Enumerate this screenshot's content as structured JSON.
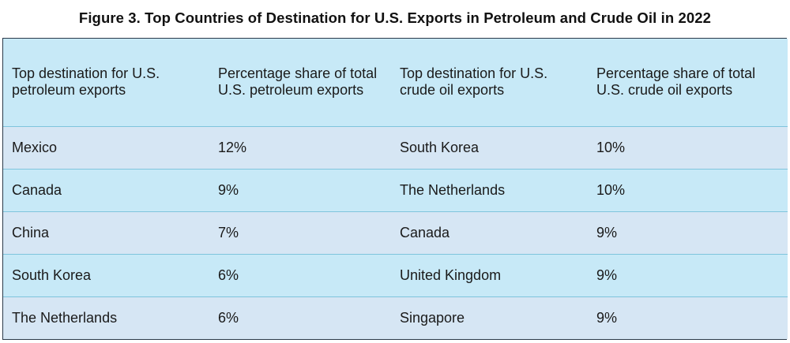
{
  "title": "Figure 3. Top Countries of Destination for U.S. Exports in Petroleum and Crude Oil in 2022",
  "table": {
    "headers": [
      "Top destination for U.S. petroleum exports",
      "Percentage share of total U.S. petroleum exports",
      "Top destination for U.S. crude oil exports",
      "Percentage share of total U.S. crude oil exports"
    ],
    "rows": [
      [
        "Mexico",
        "12%",
        "South Korea",
        "10%"
      ],
      [
        "Canada",
        "9%",
        "The Netherlands",
        "10%"
      ],
      [
        "China",
        "7%",
        "Canada",
        "9%"
      ],
      [
        "South Korea",
        "6%",
        "United Kingdom",
        "9%"
      ],
      [
        "The Netherlands",
        "6%",
        "Singapore",
        "9%"
      ]
    ]
  },
  "colors": {
    "header_bg": "#c7e9f7",
    "row_bg_a": "#d6e6f4",
    "row_bg_b": "#c7e9f7",
    "row_divider": "#7fc4dc",
    "border": "#2b3a4a"
  }
}
